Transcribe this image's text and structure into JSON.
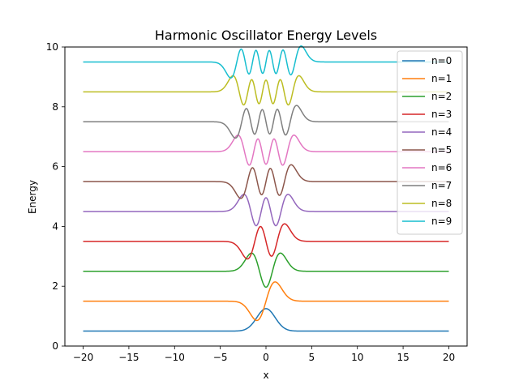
{
  "chart_data": {
    "type": "line",
    "title": "Harmonic Oscillator Energy Levels",
    "xlabel": "x",
    "ylabel": "Energy",
    "xlim": [
      -22,
      22
    ],
    "ylim": [
      0,
      10
    ],
    "x_range": [
      -20,
      20
    ],
    "xticks": [
      -20,
      -15,
      -10,
      -5,
      0,
      5,
      10,
      15,
      20
    ],
    "yticks": [
      0,
      2,
      4,
      6,
      8,
      10
    ],
    "grid": false,
    "legend_position": "top-right",
    "series": [
      {
        "name": "n=0",
        "n": 0,
        "energy": 0.5,
        "color": "#1f77b4"
      },
      {
        "name": "n=1",
        "n": 1,
        "energy": 1.5,
        "color": "#ff7f0e"
      },
      {
        "name": "n=2",
        "n": 2,
        "energy": 2.5,
        "color": "#2ca02c"
      },
      {
        "name": "n=3",
        "n": 3,
        "energy": 3.5,
        "color": "#d62728"
      },
      {
        "name": "n=4",
        "n": 4,
        "energy": 4.5,
        "color": "#9467bd"
      },
      {
        "name": "n=5",
        "n": 5,
        "energy": 5.5,
        "color": "#8c564b"
      },
      {
        "name": "n=6",
        "n": 6,
        "energy": 6.5,
        "color": "#e377c2"
      },
      {
        "name": "n=7",
        "n": 7,
        "energy": 7.5,
        "color": "#7f7f7f"
      },
      {
        "name": "n=8",
        "n": 8,
        "energy": 8.5,
        "color": "#bcbd22"
      },
      {
        "name": "n=9",
        "n": 9,
        "energy": 9.5,
        "color": "#17becf"
      }
    ],
    "curve_formula": "y = E_n + psi_n(x), psi_n = Hermite-Gaussian wavefunction"
  }
}
